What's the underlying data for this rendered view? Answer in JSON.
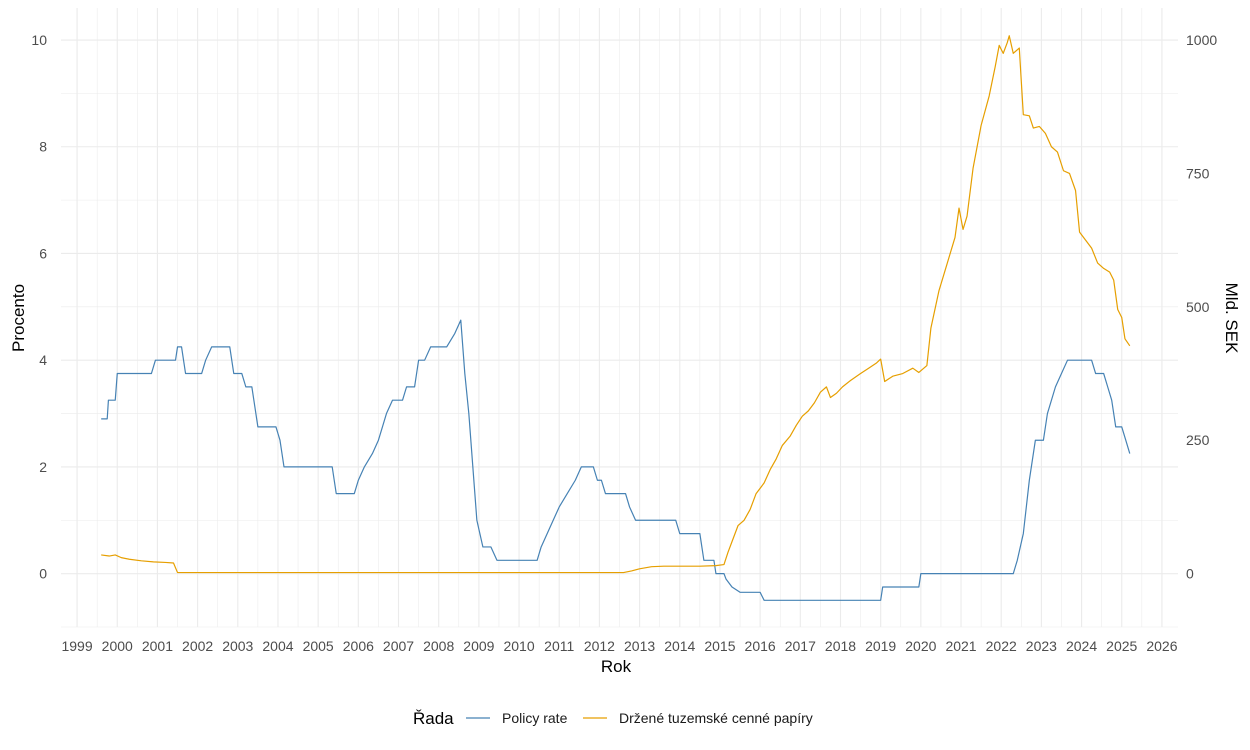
{
  "chart_data": {
    "type": "line",
    "title": "",
    "xlabel": "Rok",
    "ylabel_left": "Procento",
    "ylabel_right": "Mld. SEK",
    "legend_title": "Řada",
    "legend_position": "bottom",
    "grid": true,
    "xlim": [
      1998.6,
      2026.4
    ],
    "ylim_left": [
      -1,
      10.6
    ],
    "ylim_right": [
      -100,
      1060
    ],
    "x_ticks": [
      "1999",
      "2000",
      "2001",
      "2002",
      "2003",
      "2004",
      "2005",
      "2006",
      "2007",
      "2008",
      "2009",
      "2010",
      "2011",
      "2012",
      "2013",
      "2014",
      "2015",
      "2016",
      "2017",
      "2018",
      "2019",
      "2020",
      "2021",
      "2022",
      "2023",
      "2024",
      "2025",
      "2026"
    ],
    "y_ticks_left": [
      "0",
      "2",
      "4",
      "6",
      "8",
      "10"
    ],
    "y_ticks_right": [
      "0",
      "250",
      "500",
      "750",
      "1000"
    ],
    "series": [
      {
        "name": "Policy rate",
        "axis": "left",
        "color": "#4682b4",
        "points": [
          [
            1999.6,
            2.9
          ],
          [
            1999.75,
            2.9
          ],
          [
            1999.78,
            3.25
          ],
          [
            1999.95,
            3.25
          ],
          [
            2000.0,
            3.75
          ],
          [
            2000.85,
            3.75
          ],
          [
            2000.95,
            4.0
          ],
          [
            2001.45,
            4.0
          ],
          [
            2001.5,
            4.25
          ],
          [
            2001.6,
            4.25
          ],
          [
            2001.7,
            3.75
          ],
          [
            2002.1,
            3.75
          ],
          [
            2002.2,
            4.0
          ],
          [
            2002.35,
            4.25
          ],
          [
            2002.8,
            4.25
          ],
          [
            2002.9,
            3.75
          ],
          [
            2003.1,
            3.75
          ],
          [
            2003.2,
            3.5
          ],
          [
            2003.35,
            3.5
          ],
          [
            2003.5,
            2.75
          ],
          [
            2003.95,
            2.75
          ],
          [
            2004.05,
            2.5
          ],
          [
            2004.15,
            2.0
          ],
          [
            2005.35,
            2.0
          ],
          [
            2005.45,
            1.5
          ],
          [
            2005.9,
            1.5
          ],
          [
            2006.0,
            1.75
          ],
          [
            2006.15,
            2.0
          ],
          [
            2006.35,
            2.25
          ],
          [
            2006.5,
            2.5
          ],
          [
            2006.7,
            3.0
          ],
          [
            2006.85,
            3.25
          ],
          [
            2007.1,
            3.25
          ],
          [
            2007.2,
            3.5
          ],
          [
            2007.4,
            3.5
          ],
          [
            2007.5,
            4.0
          ],
          [
            2007.65,
            4.0
          ],
          [
            2007.8,
            4.25
          ],
          [
            2008.2,
            4.25
          ],
          [
            2008.4,
            4.5
          ],
          [
            2008.55,
            4.75
          ],
          [
            2008.65,
            3.75
          ],
          [
            2008.75,
            3.0
          ],
          [
            2008.85,
            2.0
          ],
          [
            2008.95,
            1.0
          ],
          [
            2009.1,
            0.5
          ],
          [
            2009.3,
            0.5
          ],
          [
            2009.45,
            0.25
          ],
          [
            2010.45,
            0.25
          ],
          [
            2010.55,
            0.5
          ],
          [
            2010.7,
            0.75
          ],
          [
            2010.85,
            1.0
          ],
          [
            2011.0,
            1.25
          ],
          [
            2011.2,
            1.5
          ],
          [
            2011.4,
            1.75
          ],
          [
            2011.55,
            2.0
          ],
          [
            2011.85,
            2.0
          ],
          [
            2011.95,
            1.75
          ],
          [
            2012.05,
            1.75
          ],
          [
            2012.15,
            1.5
          ],
          [
            2012.65,
            1.5
          ],
          [
            2012.75,
            1.25
          ],
          [
            2012.9,
            1.0
          ],
          [
            2013.9,
            1.0
          ],
          [
            2014.0,
            0.75
          ],
          [
            2014.5,
            0.75
          ],
          [
            2014.6,
            0.25
          ],
          [
            2014.85,
            0.25
          ],
          [
            2014.9,
            0.0
          ],
          [
            2015.1,
            0.0
          ],
          [
            2015.15,
            -0.1
          ],
          [
            2015.3,
            -0.25
          ],
          [
            2015.5,
            -0.35
          ],
          [
            2016.0,
            -0.35
          ],
          [
            2016.1,
            -0.5
          ],
          [
            2019.0,
            -0.5
          ],
          [
            2019.05,
            -0.25
          ],
          [
            2019.95,
            -0.25
          ],
          [
            2020.0,
            0.0
          ],
          [
            2022.3,
            0.0
          ],
          [
            2022.4,
            0.25
          ],
          [
            2022.55,
            0.75
          ],
          [
            2022.7,
            1.75
          ],
          [
            2022.85,
            2.5
          ],
          [
            2023.05,
            2.5
          ],
          [
            2023.15,
            3.0
          ],
          [
            2023.35,
            3.5
          ],
          [
            2023.5,
            3.75
          ],
          [
            2023.65,
            4.0
          ],
          [
            2024.25,
            4.0
          ],
          [
            2024.35,
            3.75
          ],
          [
            2024.55,
            3.75
          ],
          [
            2024.65,
            3.5
          ],
          [
            2024.75,
            3.25
          ],
          [
            2024.85,
            2.75
          ],
          [
            2025.0,
            2.75
          ],
          [
            2025.1,
            2.5
          ],
          [
            2025.2,
            2.25
          ]
        ]
      },
      {
        "name": "Držené tuzemské cenné papíry",
        "axis": "right",
        "color": "#e69f00",
        "points": [
          [
            1999.6,
            35
          ],
          [
            1999.8,
            33
          ],
          [
            1999.95,
            35
          ],
          [
            2000.1,
            30
          ],
          [
            2000.3,
            27
          ],
          [
            2000.6,
            24
          ],
          [
            2000.9,
            22
          ],
          [
            2001.2,
            21
          ],
          [
            2001.4,
            20
          ],
          [
            2001.5,
            2
          ],
          [
            2012.6,
            2
          ],
          [
            2012.8,
            5
          ],
          [
            2013.0,
            9
          ],
          [
            2013.3,
            13
          ],
          [
            2013.6,
            14
          ],
          [
            2014.5,
            14
          ],
          [
            2014.9,
            15
          ],
          [
            2015.1,
            17
          ],
          [
            2015.2,
            40
          ],
          [
            2015.3,
            60
          ],
          [
            2015.45,
            90
          ],
          [
            2015.6,
            100
          ],
          [
            2015.75,
            120
          ],
          [
            2015.9,
            150
          ],
          [
            2016.1,
            170
          ],
          [
            2016.25,
            195
          ],
          [
            2016.4,
            215
          ],
          [
            2016.55,
            240
          ],
          [
            2016.75,
            258
          ],
          [
            2016.9,
            278
          ],
          [
            2017.05,
            295
          ],
          [
            2017.2,
            305
          ],
          [
            2017.35,
            320
          ],
          [
            2017.5,
            340
          ],
          [
            2017.65,
            350
          ],
          [
            2017.75,
            330
          ],
          [
            2017.9,
            338
          ],
          [
            2018.05,
            350
          ],
          [
            2018.25,
            362
          ],
          [
            2018.5,
            375
          ],
          [
            2018.7,
            385
          ],
          [
            2018.9,
            395
          ],
          [
            2019.0,
            402
          ],
          [
            2019.1,
            360
          ],
          [
            2019.3,
            370
          ],
          [
            2019.55,
            375
          ],
          [
            2019.8,
            385
          ],
          [
            2019.95,
            377
          ],
          [
            2020.15,
            390
          ],
          [
            2020.25,
            460
          ],
          [
            2020.45,
            530
          ],
          [
            2020.65,
            580
          ],
          [
            2020.85,
            630
          ],
          [
            2020.95,
            685
          ],
          [
            2021.05,
            645
          ],
          [
            2021.15,
            670
          ],
          [
            2021.3,
            760
          ],
          [
            2021.5,
            840
          ],
          [
            2021.7,
            895
          ],
          [
            2021.85,
            950
          ],
          [
            2021.95,
            990
          ],
          [
            2022.05,
            975
          ],
          [
            2022.15,
            995
          ],
          [
            2022.2,
            1008
          ],
          [
            2022.3,
            975
          ],
          [
            2022.45,
            985
          ],
          [
            2022.55,
            860
          ],
          [
            2022.7,
            858
          ],
          [
            2022.8,
            835
          ],
          [
            2022.95,
            838
          ],
          [
            2023.1,
            825
          ],
          [
            2023.25,
            800
          ],
          [
            2023.4,
            790
          ],
          [
            2023.55,
            755
          ],
          [
            2023.7,
            750
          ],
          [
            2023.85,
            718
          ],
          [
            2023.95,
            640
          ],
          [
            2024.1,
            625
          ],
          [
            2024.25,
            610
          ],
          [
            2024.4,
            582
          ],
          [
            2024.55,
            572
          ],
          [
            2024.7,
            565
          ],
          [
            2024.8,
            550
          ],
          [
            2024.9,
            495
          ],
          [
            2025.0,
            480
          ],
          [
            2025.08,
            440
          ],
          [
            2025.2,
            427
          ]
        ]
      }
    ]
  }
}
